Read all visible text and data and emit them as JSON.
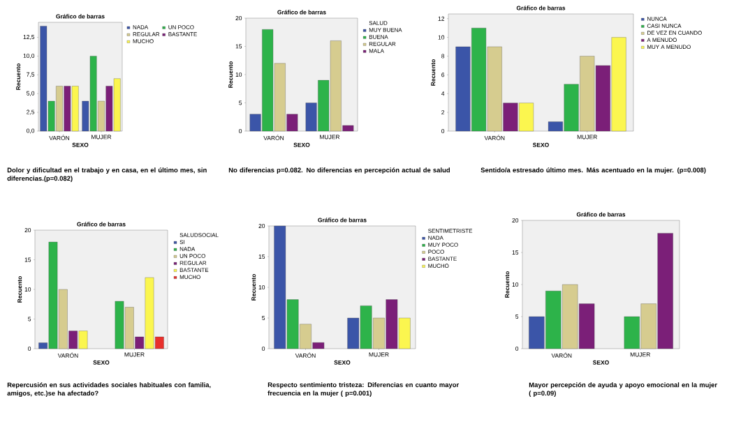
{
  "chart_data": [
    {
      "type": "bar",
      "title": "Gráfico de barras",
      "xlabel": "SEXO",
      "ylabel": "Recuento",
      "categories": [
        "VARÓN",
        "MUJER"
      ],
      "ylim": [
        0,
        14.5
      ],
      "yticks": [
        {
          "value": 0,
          "label": "0,0"
        },
        {
          "value": 2.5,
          "label": "2,5"
        },
        {
          "value": 5,
          "label": "5,0"
        },
        {
          "value": 7.5,
          "label": "7,5"
        },
        {
          "value": 10,
          "label": "10,0"
        },
        {
          "value": 12.5,
          "label": "12,5"
        }
      ],
      "legend": "right",
      "series": [
        {
          "name": "NADA",
          "color": "#3b55a8",
          "values": [
            14,
            4
          ]
        },
        {
          "name": "UN POCO",
          "color": "#2db34a",
          "values": [
            4,
            10
          ]
        },
        {
          "name": "REGULAR",
          "color": "#d6cc8f",
          "values": [
            6,
            4
          ]
        },
        {
          "name": "BASTANTE",
          "color": "#7b1f78",
          "values": [
            6,
            6
          ]
        },
        {
          "name": "MUCHO",
          "color": "#fbf64f",
          "values": [
            6,
            7
          ]
        }
      ],
      "annotations": [
        "Dolor y dificultad en el trabajo y en casa, en el último mes, sin diferencias.(p=0.082)"
      ]
    },
    {
      "type": "bar",
      "title": "Gráfico de barras",
      "xlabel": "SEXO",
      "ylabel": "Recuento",
      "legend_title": "SALUD",
      "categories": [
        "VARÓN",
        "MUJER"
      ],
      "ylim": [
        0,
        20
      ],
      "yticks": [
        0,
        5,
        10,
        15,
        20
      ],
      "legend": "right",
      "series": [
        {
          "name": "MUY BUENA",
          "color": "#3b55a8",
          "values": [
            3,
            5
          ]
        },
        {
          "name": "BUENA",
          "color": "#2db34a",
          "values": [
            18,
            9
          ]
        },
        {
          "name": "REGULAR",
          "color": "#d6cc8f",
          "values": [
            12,
            16
          ]
        },
        {
          "name": "MALA",
          "color": "#7b1f78",
          "values": [
            3,
            1
          ]
        }
      ],
      "annotations": [
        "No diferencias p=0.082. No diferencias en percepción actual de salud"
      ]
    },
    {
      "type": "bar",
      "title": "Gráfico de barras",
      "xlabel": "SEXO",
      "ylabel": "Recuento",
      "categories": [
        "VARÓN",
        "MUJER"
      ],
      "ylim": [
        0,
        12.5
      ],
      "yticks": [
        0,
        2,
        4,
        6,
        8,
        10,
        12
      ],
      "legend": "right",
      "series": [
        {
          "name": "NUNCA",
          "color": "#3b55a8",
          "values": [
            9,
            1
          ]
        },
        {
          "name": "CASI NUNCA",
          "color": "#2db34a",
          "values": [
            11,
            5
          ]
        },
        {
          "name": "DE VEZ EN CUANDO",
          "color": "#d6cc8f",
          "values": [
            9,
            8
          ]
        },
        {
          "name": "A MENUDO",
          "color": "#7b1f78",
          "values": [
            3,
            7
          ]
        },
        {
          "name": "MUY A MENUDO",
          "color": "#fbf64f",
          "values": [
            3,
            10
          ]
        }
      ],
      "annotations": [
        "Sentido/a estresado último mes. Más acentuado en la mujer. (p=0.008)"
      ]
    },
    {
      "type": "bar",
      "title": "Gráfico de barras",
      "xlabel": "SEXO",
      "ylabel": "Recuento",
      "legend_title": "SALUDSOCIAL",
      "categories": [
        "VARÓN",
        "MUJER"
      ],
      "ylim": [
        0,
        20
      ],
      "yticks": [
        0,
        5,
        10,
        15,
        20
      ],
      "legend": "right",
      "series": [
        {
          "name": "SI",
          "color": "#3b55a8",
          "values": [
            1,
            null
          ]
        },
        {
          "name": "NADA",
          "color": "#2db34a",
          "values": [
            18,
            8
          ]
        },
        {
          "name": "UN POCO",
          "color": "#d6cc8f",
          "values": [
            10,
            7
          ]
        },
        {
          "name": "REGULAR",
          "color": "#7b1f78",
          "values": [
            3,
            2
          ]
        },
        {
          "name": "BASTANTE",
          "color": "#fbf64f",
          "values": [
            3,
            12
          ]
        },
        {
          "name": "MUCHO",
          "color": "#e8302c",
          "values": [
            null,
            2
          ]
        }
      ],
      "annotations": [
        "Repercusión en sus actividades sociales habituales con familia, amigos, etc.)se ha afectado?"
      ]
    },
    {
      "type": "bar",
      "title": "Gráfico de barras",
      "xlabel": "SEXO",
      "ylabel": "Recuento",
      "legend_title": "SENTIMETRISTE",
      "categories": [
        "VARÓN",
        "MUJER"
      ],
      "ylim": [
        0,
        20
      ],
      "yticks": [
        0,
        5,
        10,
        15,
        20
      ],
      "legend": "right",
      "series": [
        {
          "name": "NADA",
          "color": "#3b55a8",
          "values": [
            20,
            5
          ]
        },
        {
          "name": "MUY POCO",
          "color": "#2db34a",
          "values": [
            8,
            7
          ]
        },
        {
          "name": "POCO",
          "color": "#d6cc8f",
          "values": [
            4,
            5
          ]
        },
        {
          "name": "BASTANTE",
          "color": "#7b1f78",
          "values": [
            1,
            8
          ]
        },
        {
          "name": "MUCHO",
          "color": "#fbf64f",
          "values": [
            null,
            5
          ]
        }
      ],
      "annotations": [
        "Respecto sentimiento tristeza: Diferencias en cuanto mayor frecuencia en la mujer ( p=0.001)"
      ]
    },
    {
      "type": "bar",
      "title": "Gráfico de barras",
      "xlabel": "SEXO",
      "ylabel": "Recuento",
      "categories": [
        "VARÓN",
        "MUJER"
      ],
      "ylim": [
        0,
        20
      ],
      "yticks": [
        0,
        5,
        10,
        15,
        20
      ],
      "series": [
        {
          "color": "#3b55a8",
          "values": [
            5,
            null
          ]
        },
        {
          "color": "#2db34a",
          "values": [
            9,
            5
          ]
        },
        {
          "color": "#d6cc8f",
          "values": [
            10,
            7
          ]
        },
        {
          "color": "#7b1f78",
          "values": [
            7,
            18
          ]
        }
      ],
      "annotations": [
        "Mayor percepción de ayuda y apoyo emocional en la mujer ( p=0.09)"
      ]
    }
  ]
}
